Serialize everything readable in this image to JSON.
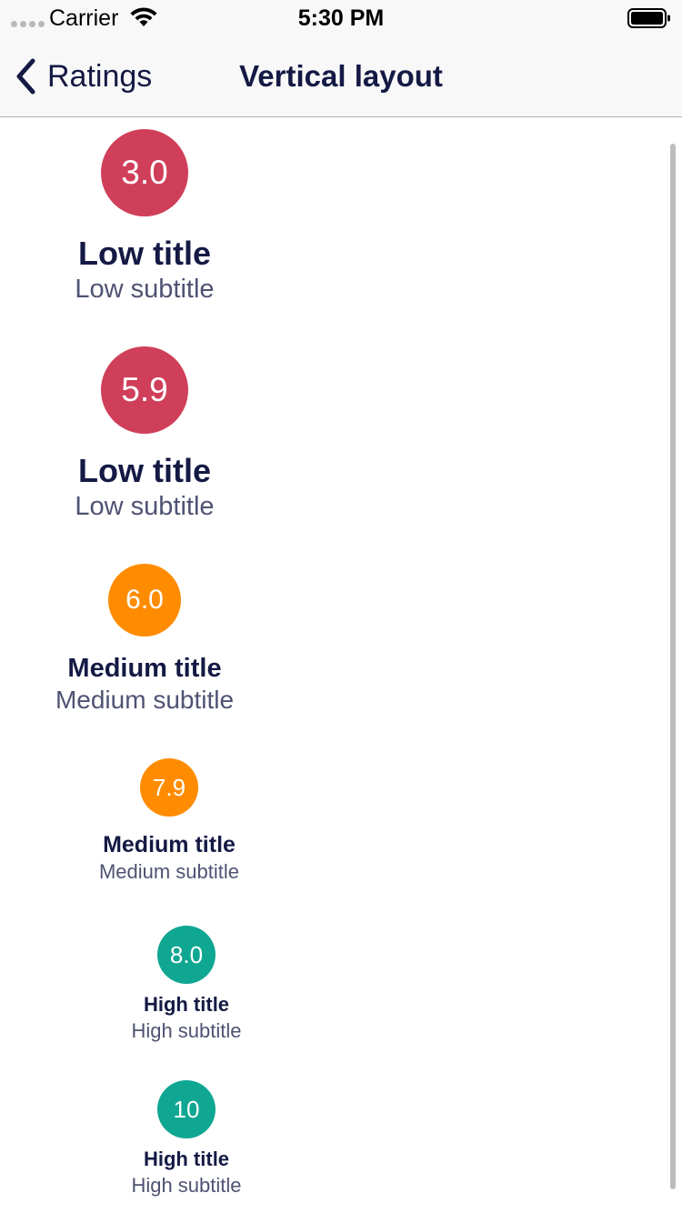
{
  "status_bar": {
    "carrier": "Carrier",
    "time": "5:30 PM",
    "wifi_icon": "wifi-icon",
    "battery_icon": "battery-icon"
  },
  "nav": {
    "back_label": "Ratings",
    "back_icon": "chevron-left-icon",
    "title": "Vertical layout"
  },
  "colors": {
    "low": "#d03f5a",
    "medium": "#ff8c00",
    "high": "#10a792",
    "title": "#141a44",
    "subtitle": "#4f5373"
  },
  "ratings": [
    {
      "value": "3.0",
      "level": "low",
      "title": "Low title",
      "subtitle": "Low subtitle"
    },
    {
      "value": "5.9",
      "level": "low",
      "title": "Low title",
      "subtitle": "Low subtitle"
    },
    {
      "value": "6.0",
      "level": "medium",
      "title": "Medium title",
      "subtitle": "Medium subtitle"
    },
    {
      "value": "7.9",
      "level": "medium",
      "title": "Medium title",
      "subtitle": "Medium subtitle"
    },
    {
      "value": "8.0",
      "level": "high",
      "title": "High title",
      "subtitle": "High subtitle"
    },
    {
      "value": "10",
      "level": "high",
      "title": "High title",
      "subtitle": "High subtitle"
    }
  ]
}
